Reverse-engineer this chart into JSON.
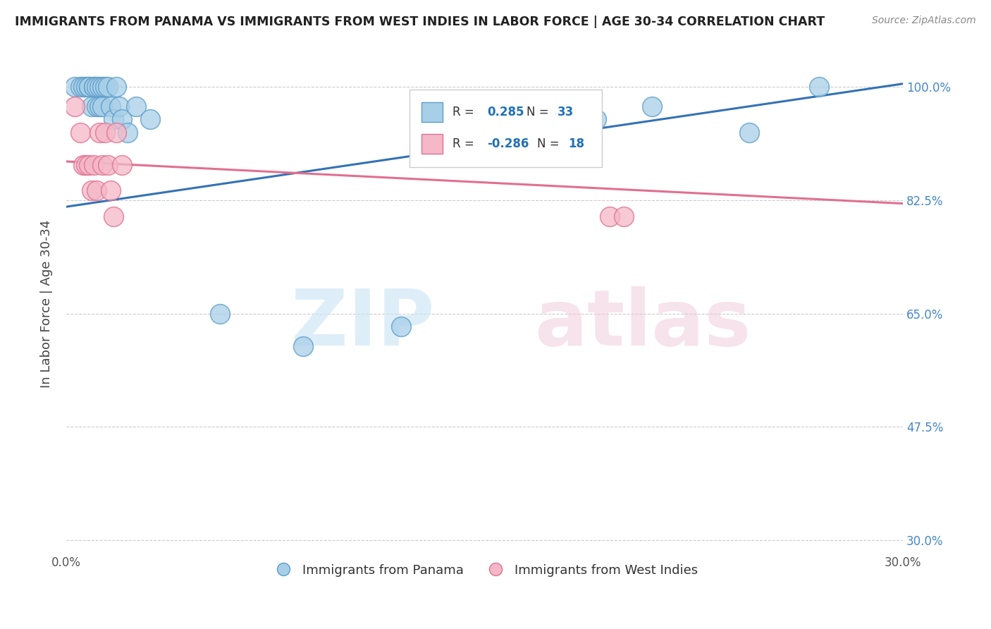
{
  "title": "IMMIGRANTS FROM PANAMA VS IMMIGRANTS FROM WEST INDIES IN LABOR FORCE | AGE 30-34 CORRELATION CHART",
  "source": "Source: ZipAtlas.com",
  "ylabel": "In Labor Force | Age 30-34",
  "yticks": [
    0.3,
    0.475,
    0.65,
    0.825,
    1.0
  ],
  "ytick_labels": [
    "30.0%",
    "47.5%",
    "65.0%",
    "82.5%",
    "100.0%"
  ],
  "xlim": [
    0.0,
    0.3
  ],
  "ylim": [
    0.28,
    1.05
  ],
  "panama_R": 0.285,
  "panama_N": 33,
  "westindies_R": -0.286,
  "westindies_N": 18,
  "panama_color": "#a8cfe8",
  "westindies_color": "#f4b8c8",
  "panama_edge_color": "#5b9dc9",
  "westindies_edge_color": "#e07090",
  "panama_line_color": "#3472b5",
  "westindies_line_color": "#e07090",
  "panama_x": [
    0.003,
    0.005,
    0.006,
    0.007,
    0.008,
    0.008,
    0.009,
    0.01,
    0.01,
    0.011,
    0.011,
    0.012,
    0.012,
    0.013,
    0.013,
    0.014,
    0.015,
    0.016,
    0.017,
    0.018,
    0.019,
    0.02,
    0.022,
    0.025,
    0.03,
    0.055,
    0.085,
    0.12,
    0.155,
    0.19,
    0.21,
    0.245,
    0.27
  ],
  "panama_y": [
    1.0,
    1.0,
    1.0,
    1.0,
    1.0,
    1.0,
    0.97,
    1.0,
    1.0,
    1.0,
    0.97,
    1.0,
    0.97,
    1.0,
    0.97,
    1.0,
    1.0,
    0.97,
    0.95,
    1.0,
    0.97,
    0.95,
    0.93,
    0.97,
    0.95,
    0.65,
    0.6,
    0.63,
    0.93,
    0.95,
    0.97,
    0.93,
    1.0
  ],
  "westindies_x": [
    0.003,
    0.005,
    0.006,
    0.007,
    0.008,
    0.009,
    0.01,
    0.011,
    0.012,
    0.013,
    0.014,
    0.015,
    0.016,
    0.017,
    0.018,
    0.02,
    0.195,
    0.2
  ],
  "westindies_y": [
    0.97,
    0.93,
    0.88,
    0.88,
    0.88,
    0.84,
    0.88,
    0.84,
    0.93,
    0.88,
    0.93,
    0.88,
    0.84,
    0.8,
    0.93,
    0.88,
    0.8,
    0.8
  ],
  "panama_line_x0": 0.0,
  "panama_line_y0": 0.815,
  "panama_line_x1": 0.3,
  "panama_line_y1": 1.005,
  "westindies_line_x0": 0.0,
  "westindies_line_y0": 0.885,
  "westindies_line_x1": 0.3,
  "westindies_line_y1": 0.82,
  "background_color": "#ffffff",
  "grid_color": "#cccccc"
}
